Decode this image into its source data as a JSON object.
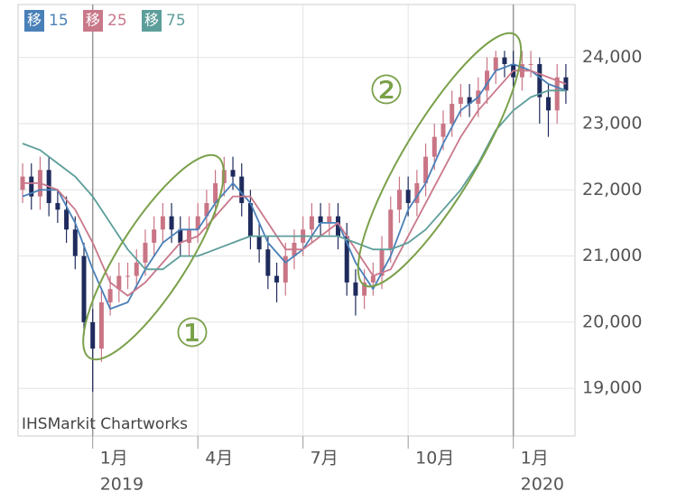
{
  "chart_data": {
    "type": "candlestick",
    "watermark": "IHSMarkit Chartworks",
    "xlim": [
      -2.13,
      13.76
    ],
    "ylim": [
      18280,
      24800
    ],
    "yticks": [
      {
        "value": 19000,
        "label": "19,000"
      },
      {
        "value": 20000,
        "label": "20,000"
      },
      {
        "value": 21000,
        "label": "21,000"
      },
      {
        "value": 22000,
        "label": "22,000"
      },
      {
        "value": 23000,
        "label": "23,000"
      },
      {
        "value": 24000,
        "label": "24,000"
      }
    ],
    "xticks": [
      {
        "value": 0,
        "label": "1月"
      },
      {
        "value": 3,
        "label": "4月"
      },
      {
        "value": 6,
        "label": "7月"
      },
      {
        "value": 9,
        "label": "10月"
      },
      {
        "value": 12,
        "label": "1月"
      }
    ],
    "year_labels": [
      {
        "value": 0,
        "label": "2019"
      },
      {
        "value": 12,
        "label": "2020"
      }
    ],
    "grid": true,
    "up_color": "#c97585",
    "down_color": "#1f2b5c",
    "x": [
      -2,
      -1.75,
      -1.5,
      -1.25,
      -1,
      -0.75,
      -0.5,
      -0.25,
      0,
      0.25,
      0.5,
      0.75,
      1,
      1.25,
      1.5,
      1.75,
      2,
      2.25,
      2.5,
      2.75,
      3,
      3.25,
      3.5,
      3.75,
      4,
      4.25,
      4.5,
      4.75,
      5,
      5.25,
      5.5,
      5.75,
      6,
      6.25,
      6.5,
      6.75,
      7,
      7.25,
      7.5,
      7.75,
      8,
      8.25,
      8.5,
      8.75,
      9,
      9.25,
      9.5,
      9.75,
      10,
      10.25,
      10.5,
      10.75,
      11,
      11.25,
      11.5,
      11.75,
      12,
      12.25,
      12.5,
      12.75,
      13,
      13.25,
      13.5
    ],
    "open": [
      22000,
      22200,
      21900,
      22300,
      21800,
      21700,
      21400,
      21000,
      20000,
      19600,
      20300,
      20500,
      20700,
      20700,
      20900,
      21200,
      21400,
      21600,
      21400,
      21200,
      21400,
      21600,
      21800,
      22100,
      22300,
      22200,
      21800,
      21300,
      21100,
      20700,
      20600,
      21000,
      21200,
      21400,
      21600,
      21500,
      21600,
      21300,
      20600,
      20400,
      20600,
      20700,
      21100,
      21700,
      22000,
      21800,
      22100,
      22500,
      22800,
      23000,
      23300,
      23400,
      23300,
      23500,
      23800,
      24000,
      23900,
      23700,
      23900,
      23900,
      23400,
      23200,
      23700
    ],
    "high": [
      22400,
      22400,
      22500,
      22500,
      22000,
      21900,
      21600,
      21200,
      20200,
      20500,
      20700,
      20900,
      20900,
      21100,
      21400,
      21600,
      21800,
      21800,
      21600,
      21600,
      21800,
      22000,
      22300,
      22500,
      22500,
      22400,
      22000,
      21500,
      21300,
      20900,
      21200,
      21400,
      21600,
      21800,
      21800,
      21800,
      21800,
      21500,
      20800,
      20800,
      20900,
      21300,
      21900,
      22200,
      22200,
      22300,
      22700,
      23000,
      23200,
      23500,
      23600,
      23600,
      23700,
      24000,
      24100,
      24100,
      24100,
      24100,
      24100,
      24000,
      23600,
      23900,
      23900
    ],
    "low": [
      21800,
      21700,
      21700,
      21600,
      21500,
      21200,
      20800,
      19800,
      18950,
      19400,
      20100,
      20300,
      20500,
      20500,
      20700,
      21000,
      21200,
      21200,
      21000,
      21000,
      21200,
      21400,
      21600,
      21900,
      22000,
      21600,
      21100,
      20900,
      20500,
      20300,
      20400,
      20800,
      21000,
      21200,
      21300,
      21300,
      21100,
      20400,
      20100,
      20200,
      20400,
      20500,
      20900,
      21500,
      21600,
      21600,
      21900,
      22300,
      22600,
      22800,
      23100,
      23100,
      23100,
      23300,
      23600,
      23700,
      23500,
      23500,
      23700,
      23000,
      22800,
      23000,
      23300
    ],
    "close": [
      22200,
      21900,
      22300,
      21800,
      21700,
      21400,
      21000,
      20000,
      19600,
      20300,
      20500,
      20700,
      20700,
      20900,
      21200,
      21400,
      21600,
      21400,
      21200,
      21400,
      21600,
      21800,
      22100,
      22300,
      22200,
      21800,
      21300,
      21100,
      20700,
      20600,
      21000,
      21200,
      21400,
      21600,
      21500,
      21600,
      21300,
      20600,
      20400,
      20600,
      20700,
      21100,
      21700,
      22000,
      21800,
      22100,
      22500,
      22800,
      23000,
      23300,
      23400,
      23300,
      23500,
      23800,
      24000,
      23900,
      23700,
      23900,
      23900,
      23400,
      23200,
      23700,
      23500
    ],
    "series": [
      {
        "name": "15",
        "badge": "移",
        "color": "#4a80b8",
        "x": [
          -2,
          -1.5,
          -1,
          -0.5,
          0,
          0.5,
          1,
          1.5,
          2,
          2.5,
          3,
          3.5,
          4,
          4.5,
          5,
          5.5,
          6,
          6.5,
          7,
          7.5,
          8,
          8.5,
          9,
          9.5,
          10,
          10.5,
          11,
          11.5,
          12,
          12.5,
          13,
          13.5
        ],
        "values": [
          21900,
          22000,
          22000,
          21500,
          20800,
          20200,
          20300,
          20800,
          21200,
          21400,
          21400,
          21800,
          22100,
          21800,
          21200,
          20900,
          21100,
          21500,
          21500,
          20900,
          20500,
          21000,
          21700,
          22100,
          22700,
          23200,
          23400,
          23800,
          23900,
          23800,
          23600,
          23500
        ]
      },
      {
        "name": "25",
        "badge": "移",
        "color": "#c9788a",
        "x": [
          -2,
          -1.5,
          -1,
          -0.5,
          0,
          0.5,
          1,
          1.5,
          2,
          2.5,
          3,
          3.5,
          4,
          4.5,
          5,
          5.5,
          6,
          6.5,
          7,
          7.5,
          8,
          8.5,
          9,
          9.5,
          10,
          10.5,
          11,
          11.5,
          12,
          12.5,
          13,
          13.5
        ],
        "values": [
          22100,
          22100,
          22000,
          21700,
          21200,
          20600,
          20400,
          20600,
          20900,
          21200,
          21300,
          21600,
          21900,
          21900,
          21500,
          21100,
          21100,
          21300,
          21500,
          21100,
          20700,
          20800,
          21300,
          21800,
          22300,
          22800,
          23200,
          23500,
          23800,
          23800,
          23700,
          23600
        ]
      },
      {
        "name": "75",
        "badge": "移",
        "color": "#5c9e9a",
        "x": [
          -2,
          -1.5,
          -1,
          -0.5,
          0,
          0.5,
          1,
          1.5,
          2,
          2.5,
          3,
          3.5,
          4,
          4.5,
          5,
          5.5,
          6,
          6.5,
          7,
          7.5,
          8,
          8.5,
          9,
          9.5,
          10,
          10.5,
          11,
          11.5,
          12,
          12.5,
          13,
          13.5
        ],
        "values": [
          22700,
          22600,
          22400,
          22200,
          21900,
          21500,
          21100,
          20800,
          20800,
          21000,
          21000,
          21100,
          21200,
          21300,
          21300,
          21300,
          21300,
          21300,
          21300,
          21200,
          21100,
          21100,
          21200,
          21400,
          21700,
          22000,
          22400,
          22900,
          23200,
          23400,
          23500,
          23500
        ]
      }
    ],
    "annotations": [
      "①",
      "②"
    ]
  }
}
